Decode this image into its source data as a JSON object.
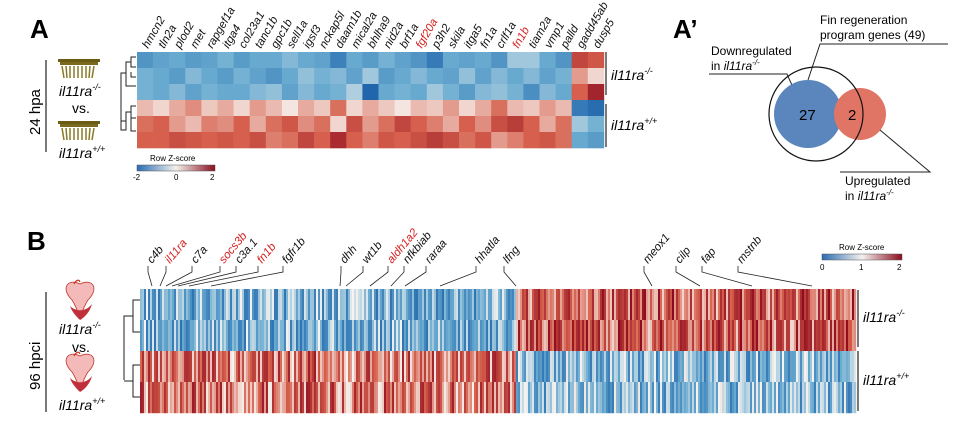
{
  "panel_a": {
    "letter": "A",
    "timepoint": "24 hpa",
    "genotype_top": "il11ra",
    "genotype_top_sup": "-/-",
    "vs": "vs.",
    "genotype_bottom": "il11ra",
    "genotype_bottom_sup": "+/+",
    "genes": [
      {
        "name": "hmcn2",
        "red": false
      },
      {
        "name": "tln2a",
        "red": false
      },
      {
        "name": "plod2",
        "red": false
      },
      {
        "name": "met",
        "red": false
      },
      {
        "name": "rapgef1a",
        "red": false
      },
      {
        "name": "itga4",
        "red": false
      },
      {
        "name": "col23a1",
        "red": false
      },
      {
        "name": "tanc1b",
        "red": false
      },
      {
        "name": "gpc1b",
        "red": false
      },
      {
        "name": "sell1a",
        "red": false
      },
      {
        "name": "igsf3",
        "red": false
      },
      {
        "name": "nckap5l",
        "red": false
      },
      {
        "name": "daam1b",
        "red": false
      },
      {
        "name": "mical2a",
        "red": false
      },
      {
        "name": "bhlha9",
        "red": false
      },
      {
        "name": "nid2a",
        "red": false
      },
      {
        "name": "brf1a",
        "red": false
      },
      {
        "name": "fgf20a",
        "red": true
      },
      {
        "name": "p3h2",
        "red": false
      },
      {
        "name": "skila",
        "red": false
      },
      {
        "name": "itga5",
        "red": false
      },
      {
        "name": "fn1a",
        "red": false
      },
      {
        "name": "crlf1a",
        "red": false
      },
      {
        "name": "fn1b",
        "red": true
      },
      {
        "name": "tiam2a",
        "red": false
      },
      {
        "name": "vmp1",
        "red": false
      },
      {
        "name": "palld",
        "red": false
      },
      {
        "name": "gadd45ab",
        "red": false
      },
      {
        "name": "dusp5",
        "red": false
      }
    ],
    "heatmap": {
      "rows": [
        [
          -1.3,
          -1.1,
          -1.0,
          -1.2,
          -1.1,
          -0.9,
          -1.2,
          -1.0,
          -1.0,
          -0.8,
          -1.0,
          -1.1,
          -1.6,
          -1.0,
          -1.2,
          -0.9,
          -1.1,
          -1.3,
          -1.7,
          -1.0,
          -1.1,
          -1.0,
          -1.3,
          -0.6,
          -0.6,
          -1.0,
          -1.3,
          1.3,
          1.1
        ],
        [
          -0.9,
          -1.0,
          -1.2,
          -0.8,
          -1.0,
          -1.2,
          -0.9,
          -1.1,
          -1.3,
          -1.0,
          -0.7,
          -0.9,
          -0.8,
          -1.1,
          -0.6,
          -1.2,
          -1.0,
          -0.8,
          -1.0,
          -1.1,
          -0.7,
          -1.1,
          -0.8,
          -1.0,
          -0.8,
          -1.1,
          -0.9,
          0.6,
          0.2
        ],
        [
          -0.9,
          -1.0,
          -0.8,
          -1.1,
          -0.9,
          -1.0,
          -1.0,
          -0.8,
          -0.7,
          -1.1,
          -0.8,
          -1.0,
          -0.9,
          -0.5,
          -2.0,
          -1.0,
          -0.9,
          -1.0,
          -0.6,
          -0.9,
          -1.2,
          -0.8,
          -0.7,
          -0.9,
          -1.4,
          -0.8,
          -1.0,
          1.0,
          1.7
        ],
        [
          0.4,
          0.2,
          0.5,
          0.7,
          0.3,
          0.5,
          0.2,
          0.6,
          0.4,
          0.1,
          0.5,
          0.3,
          0.9,
          0.2,
          0.5,
          0.3,
          0.1,
          0.4,
          0.3,
          0.6,
          0.2,
          0.5,
          0.9,
          0.4,
          0.3,
          0.6,
          0.4,
          -1.7,
          -1.9
        ],
        [
          0.9,
          1.0,
          0.6,
          0.4,
          0.8,
          0.7,
          1.0,
          0.5,
          0.9,
          1.1,
          0.7,
          0.9,
          0.2,
          1.2,
          0.6,
          0.9,
          1.3,
          1.0,
          0.8,
          0.5,
          1.0,
          0.7,
          1.2,
          1.4,
          1.0,
          0.5,
          0.9,
          -0.6,
          -0.9
        ],
        [
          1.0,
          1.0,
          1.2,
          1.1,
          1.0,
          1.1,
          1.0,
          1.2,
          0.8,
          0.9,
          1.3,
          1.0,
          1.6,
          1.0,
          0.8,
          1.1,
          1.0,
          1.2,
          1.4,
          1.2,
          0.9,
          1.1,
          0.6,
          0.8,
          1.0,
          1.1,
          0.9,
          -1.0,
          -1.2
        ]
      ]
    },
    "legend": {
      "title": "Row Z-score",
      "ticks": [
        "-2",
        "0",
        "2"
      ]
    },
    "row_labels": [
      {
        "text": "il11ra",
        "sup": "-/-"
      },
      {
        "text": "il11ra",
        "sup": "+/+"
      }
    ]
  },
  "panel_a_prime": {
    "letter": "A’",
    "fin_label_line1": "Fin regeneration",
    "fin_label_line2": "program genes (49)",
    "down_line1": "Downregulated",
    "down_line2_prefix": "in ",
    "down_line2_gene": "il11ra",
    "down_line2_sup": "-/-",
    "up_line1": "Upregulated",
    "up_line2_prefix": "in ",
    "up_line2_gene": "il11ra",
    "up_line2_sup": "-/-",
    "count_down": "27",
    "count_up": "2",
    "colors": {
      "down": "#5a86bd",
      "up": "#e07565"
    }
  },
  "panel_b": {
    "letter": "B",
    "timepoint": "96 hpci",
    "genotype_top": "il11ra",
    "genotype_top_sup": "-/-",
    "vs": "vs.",
    "genotype_bottom": "il11ra",
    "genotype_bottom_sup": "+/+",
    "genes": [
      {
        "name": "c4b",
        "red": false
      },
      {
        "name": "il11ra",
        "red": true
      },
      {
        "name": "c7a",
        "red": false
      },
      {
        "name": "socs3b",
        "red": true
      },
      {
        "name": "c3a.1",
        "red": false
      },
      {
        "name": "fn1b",
        "red": true
      },
      {
        "name": "fgfr1b",
        "red": false
      },
      {
        "name": "dhh",
        "red": false
      },
      {
        "name": "wt1b",
        "red": false
      },
      {
        "name": "aldh1a2",
        "red": true
      },
      {
        "name": "nfkbiab",
        "red": false
      },
      {
        "name": "raraa",
        "red": false
      },
      {
        "name": "hhatla",
        "red": false
      },
      {
        "name": "lfng",
        "red": false
      },
      {
        "name": "meox1",
        "red": false
      },
      {
        "name": "cilp",
        "red": false
      },
      {
        "name": "fap",
        "red": false
      },
      {
        "name": "mstnb",
        "red": false
      }
    ],
    "legend": {
      "title": "Row Z-score",
      "ticks": [
        "0",
        "1",
        "2"
      ]
    },
    "row_labels": [
      {
        "text": "il11ra",
        "sup": "-/-"
      },
      {
        "text": "il11ra",
        "sup": "+/+"
      }
    ]
  }
}
